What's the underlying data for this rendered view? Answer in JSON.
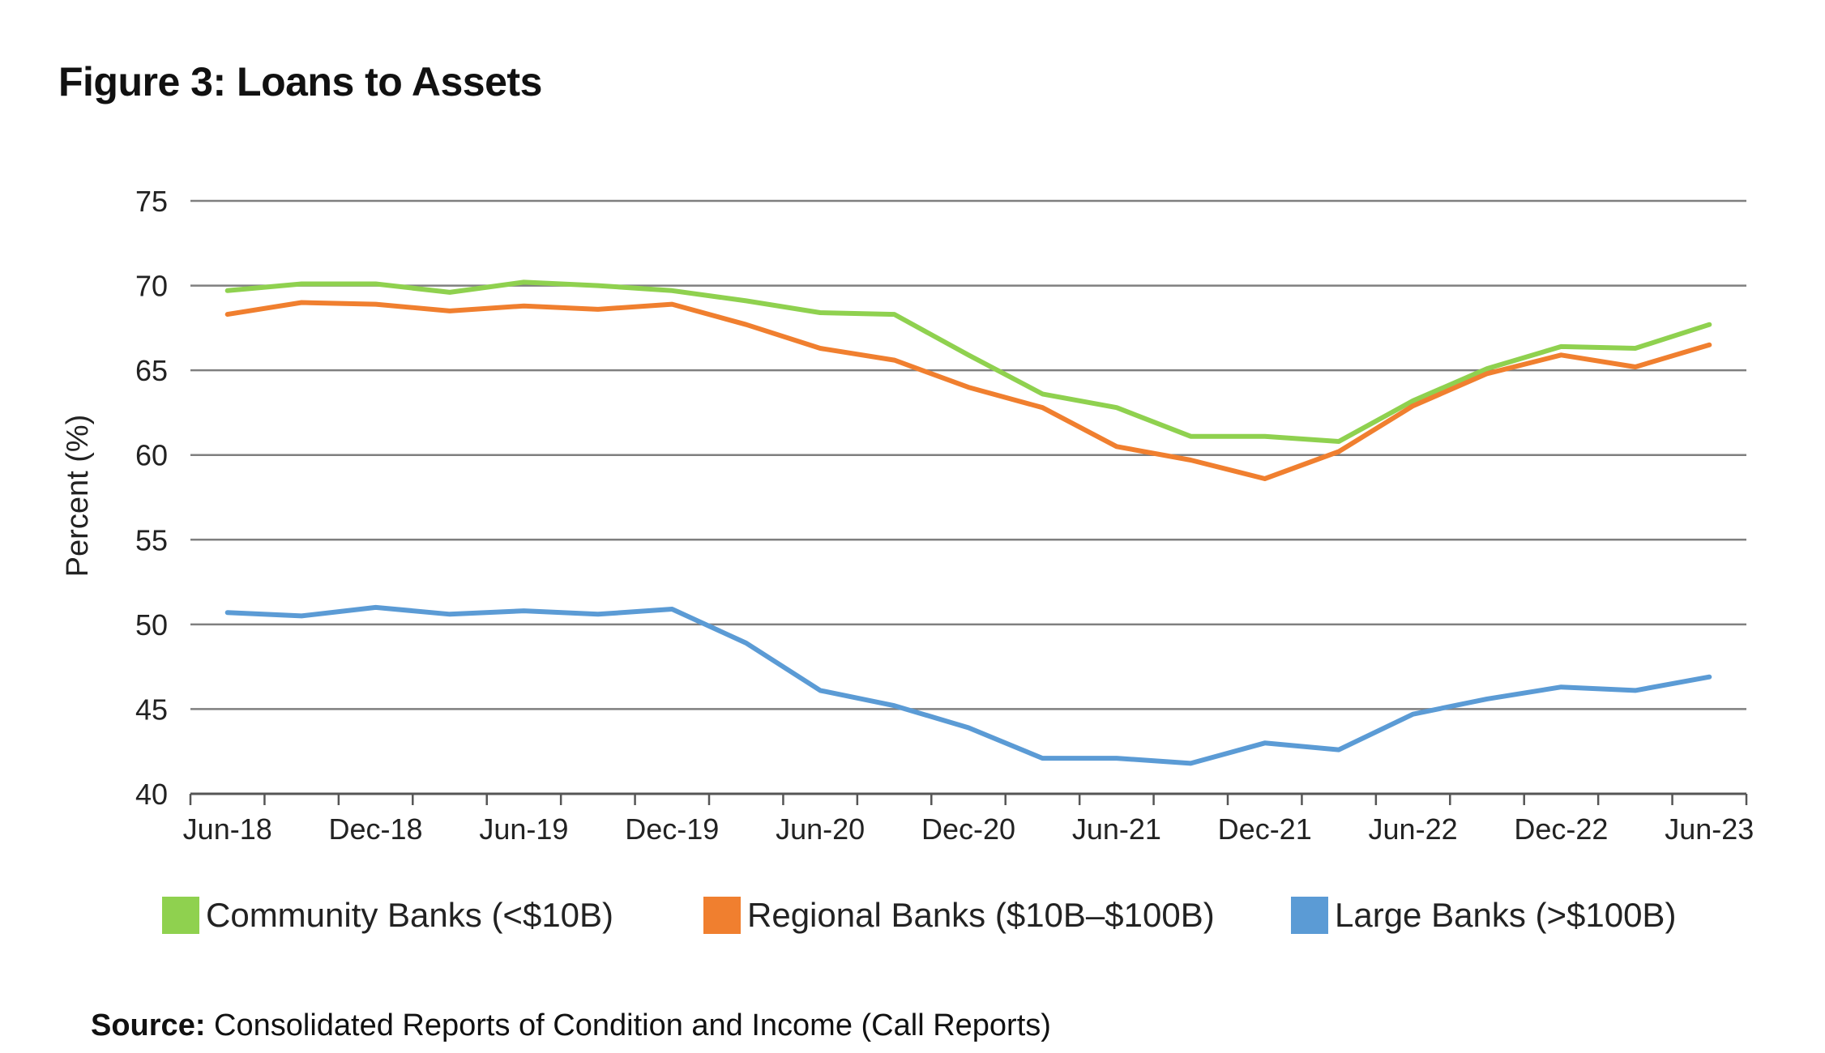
{
  "figure": {
    "title": "Figure 3: Loans to Assets"
  },
  "source": {
    "label": "Source:",
    "text": "Consolidated Reports of Condition and Income (Call Reports)"
  },
  "chart_data": {
    "type": "line",
    "title": "Figure 3: Loans to Assets",
    "xlabel": "",
    "ylabel": "Percent (%)",
    "ylim": [
      40,
      75
    ],
    "yticks": [
      40,
      45,
      50,
      55,
      60,
      65,
      70,
      75
    ],
    "grid": true,
    "legend_position": "bottom",
    "x": [
      "Jun-18",
      "Sep-18",
      "Dec-18",
      "Mar-19",
      "Jun-19",
      "Sep-19",
      "Dec-19",
      "Mar-20",
      "Jun-20",
      "Sep-20",
      "Dec-20",
      "Mar-21",
      "Jun-21",
      "Sep-21",
      "Dec-21",
      "Mar-22",
      "Jun-22",
      "Sep-22",
      "Dec-22",
      "Mar-23",
      "Jun-23"
    ],
    "x_tick_labels": [
      "Jun-18",
      "Dec-18",
      "Jun-19",
      "Dec-19",
      "Jun-20",
      "Dec-20",
      "Jun-21",
      "Dec-21",
      "Jun-22",
      "Dec-22",
      "Jun-23"
    ],
    "series": [
      {
        "name": "Community Banks (<$10B)",
        "color": "#8fd14f",
        "values": [
          69.7,
          70.1,
          70.1,
          69.6,
          70.2,
          70.0,
          69.7,
          69.1,
          68.4,
          68.3,
          65.9,
          63.6,
          62.8,
          61.1,
          61.1,
          60.8,
          63.2,
          65.1,
          66.4,
          66.3,
          67.7
        ]
      },
      {
        "name": "Regional Banks ($10B–$100B)",
        "color": "#f07f2f",
        "values": [
          68.3,
          69.0,
          68.9,
          68.5,
          68.8,
          68.6,
          68.9,
          67.7,
          66.3,
          65.6,
          64.0,
          62.8,
          60.5,
          59.7,
          58.6,
          60.2,
          62.9,
          64.8,
          65.9,
          65.2,
          66.5
        ]
      },
      {
        "name": "Large Banks (>$100B)",
        "color": "#5b9bd5",
        "values": [
          50.7,
          50.5,
          51.0,
          50.6,
          50.8,
          50.6,
          50.9,
          48.9,
          46.1,
          45.2,
          43.9,
          42.1,
          42.1,
          41.8,
          43.0,
          42.6,
          44.7,
          45.6,
          46.3,
          46.1,
          46.9
        ]
      }
    ]
  }
}
